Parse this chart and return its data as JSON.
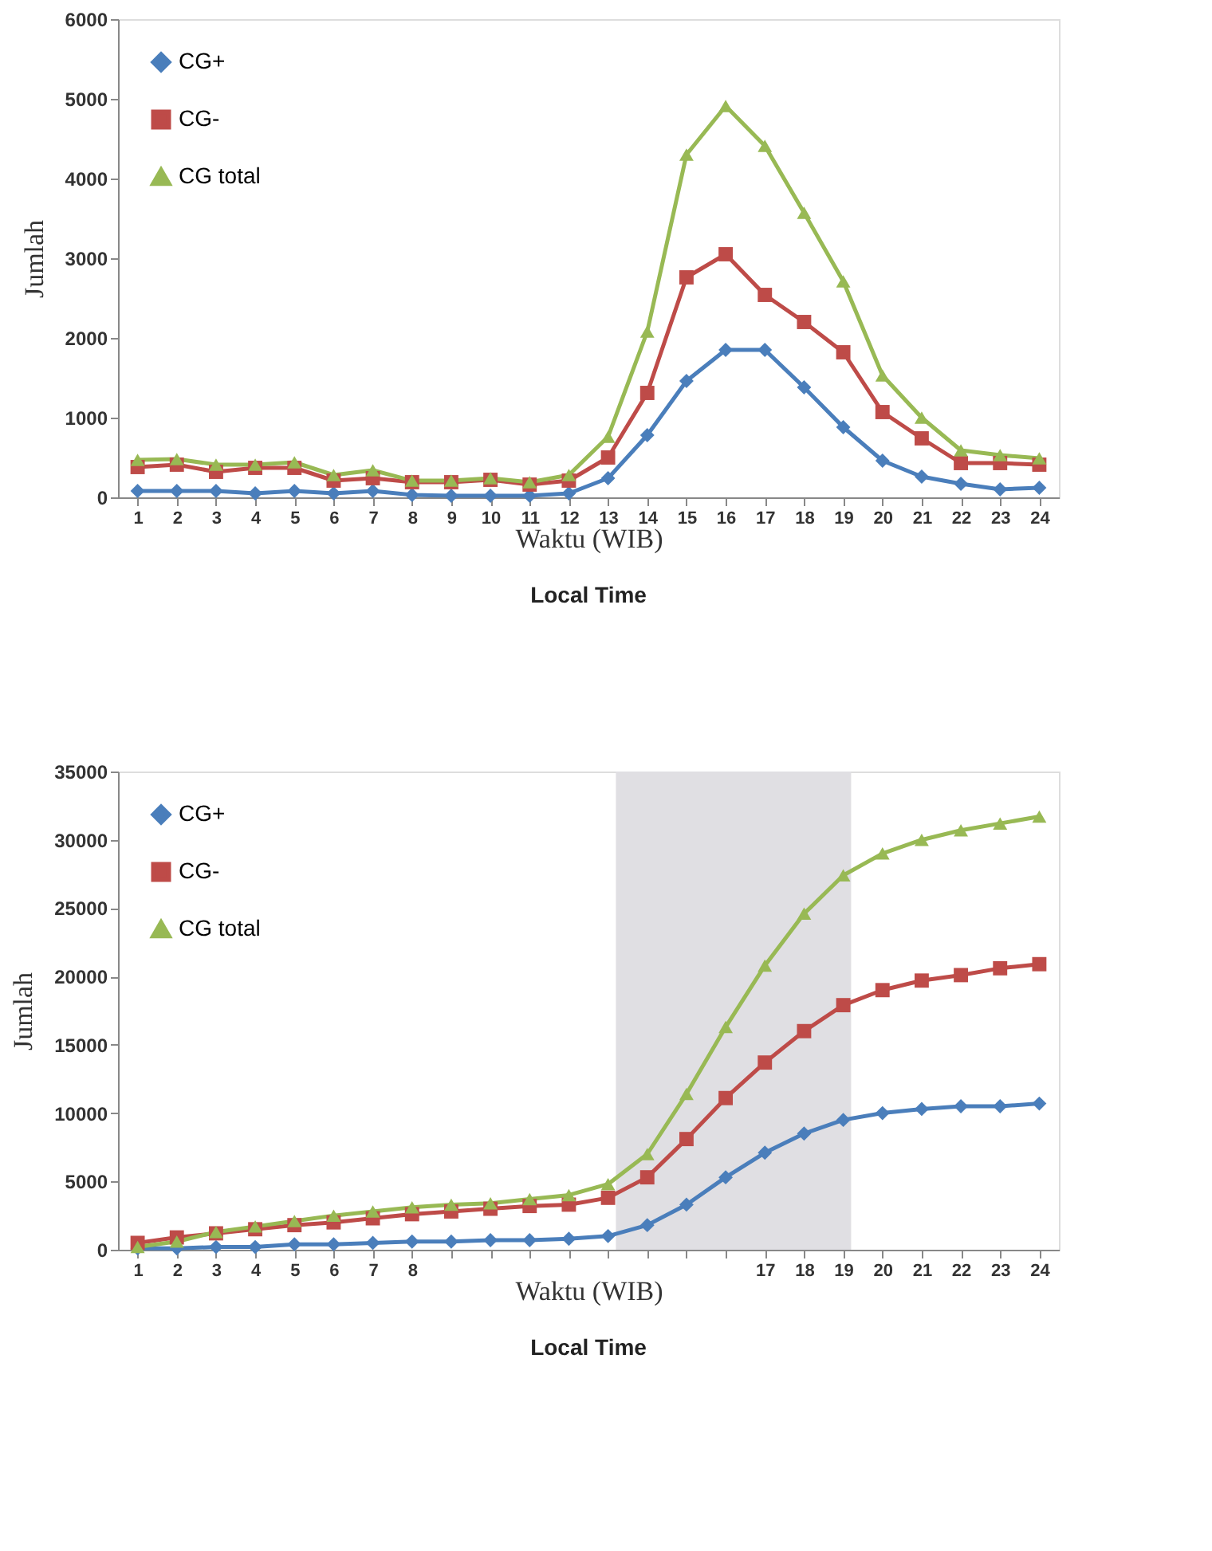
{
  "chart_data": [
    {
      "type": "line",
      "ylabel": "Jumlah",
      "xlabel": "Waktu (WIB)",
      "annotations": [
        "Local Time"
      ],
      "x": [
        1,
        2,
        3,
        4,
        5,
        6,
        7,
        8,
        9,
        10,
        11,
        12,
        13,
        14,
        15,
        16,
        17,
        18,
        19,
        20,
        21,
        22,
        23,
        24
      ],
      "xlim": [
        0.5,
        24.5
      ],
      "xticks": [
        1,
        2,
        3,
        4,
        5,
        6,
        7,
        8,
        9,
        10,
        11,
        12,
        13,
        14,
        15,
        16,
        17,
        18,
        19,
        20,
        21,
        22,
        23,
        24
      ],
      "ylim": [
        0,
        6000
      ],
      "yticks": [
        0,
        1000,
        2000,
        3000,
        4000,
        5000,
        6000
      ],
      "grid": false,
      "legend": "top left",
      "series": [
        {
          "name": "CG+",
          "color": "#4a7ebb",
          "marker": "diamond",
          "values": [
            80,
            80,
            80,
            50,
            80,
            50,
            80,
            30,
            20,
            20,
            20,
            50,
            240,
            780,
            1460,
            1850,
            1850,
            1380,
            880,
            460,
            260,
            170,
            100,
            120
          ]
        },
        {
          "name": "CG-",
          "color": "#be4b48",
          "marker": "square",
          "values": [
            380,
            410,
            320,
            370,
            370,
            210,
            240,
            190,
            190,
            220,
            160,
            210,
            500,
            1310,
            2760,
            3050,
            2540,
            2200,
            1820,
            1070,
            740,
            430,
            430,
            410
          ]
        },
        {
          "name": "CG total",
          "color": "#98b954",
          "marker": "triangle",
          "values": [
            470,
            480,
            410,
            410,
            440,
            280,
            340,
            210,
            210,
            240,
            190,
            280,
            760,
            2080,
            4300,
            4910,
            4410,
            3570,
            2710,
            1530,
            1000,
            590,
            530,
            490
          ]
        }
      ]
    },
    {
      "type": "line",
      "ylabel": "Jumlah",
      "xlabel": "Waktu (WIB)",
      "annotations": [
        "Local Time"
      ],
      "x": [
        1,
        2,
        3,
        4,
        5,
        6,
        7,
        8,
        9,
        10,
        11,
        12,
        13,
        14,
        15,
        16,
        17,
        18,
        19,
        20,
        21,
        22,
        23,
        24
      ],
      "xlim": [
        0.5,
        24.5
      ],
      "xticks": [
        1,
        2,
        3,
        4,
        5,
        6,
        7,
        8,
        {
          "value": 9,
          "label": null
        },
        {
          "value": 10,
          "label": null
        },
        {
          "value": 11,
          "label": null
        },
        {
          "value": 12,
          "label": null
        },
        {
          "value": 13,
          "label": null
        },
        {
          "value": 14,
          "label": null
        },
        {
          "value": 15,
          "label": null
        },
        {
          "value": 16,
          "label": null
        },
        17,
        18,
        19,
        20,
        21,
        22,
        23,
        24
      ],
      "ylim": [
        0,
        35000
      ],
      "yticks": [
        0,
        5000,
        10000,
        15000,
        20000,
        25000,
        30000,
        35000
      ],
      "grid": false,
      "legend": "top left",
      "bands": [
        {
          "axis": "x",
          "from": 13.2,
          "to": 19.2,
          "color": "#e0dfe3"
        }
      ],
      "series": [
        {
          "name": "CG+",
          "color": "#4a7ebb",
          "marker": "diamond",
          "values": [
            100,
            100,
            200,
            200,
            400,
            400,
            500,
            600,
            600,
            700,
            700,
            800,
            1000,
            1800,
            3300,
            5300,
            7100,
            8500,
            9500,
            10000,
            10300,
            10500,
            10500,
            10700
          ]
        },
        {
          "name": "CG-",
          "color": "#be4b48",
          "marker": "square",
          "values": [
            500,
            900,
            1200,
            1500,
            1800,
            2000,
            2300,
            2600,
            2800,
            3000,
            3200,
            3300,
            3800,
            5300,
            8100,
            11100,
            13700,
            16000,
            17900,
            19000,
            19700,
            20100,
            20600,
            20900
          ]
        },
        {
          "name": "CG total",
          "color": "#98b954",
          "marker": "triangle",
          "values": [
            200,
            600,
            1300,
            1700,
            2100,
            2500,
            2800,
            3100,
            3300,
            3400,
            3700,
            4000,
            4800,
            7000,
            11400,
            16300,
            20800,
            24600,
            27400,
            29000,
            30000,
            30700,
            31200,
            31700
          ]
        }
      ]
    }
  ]
}
